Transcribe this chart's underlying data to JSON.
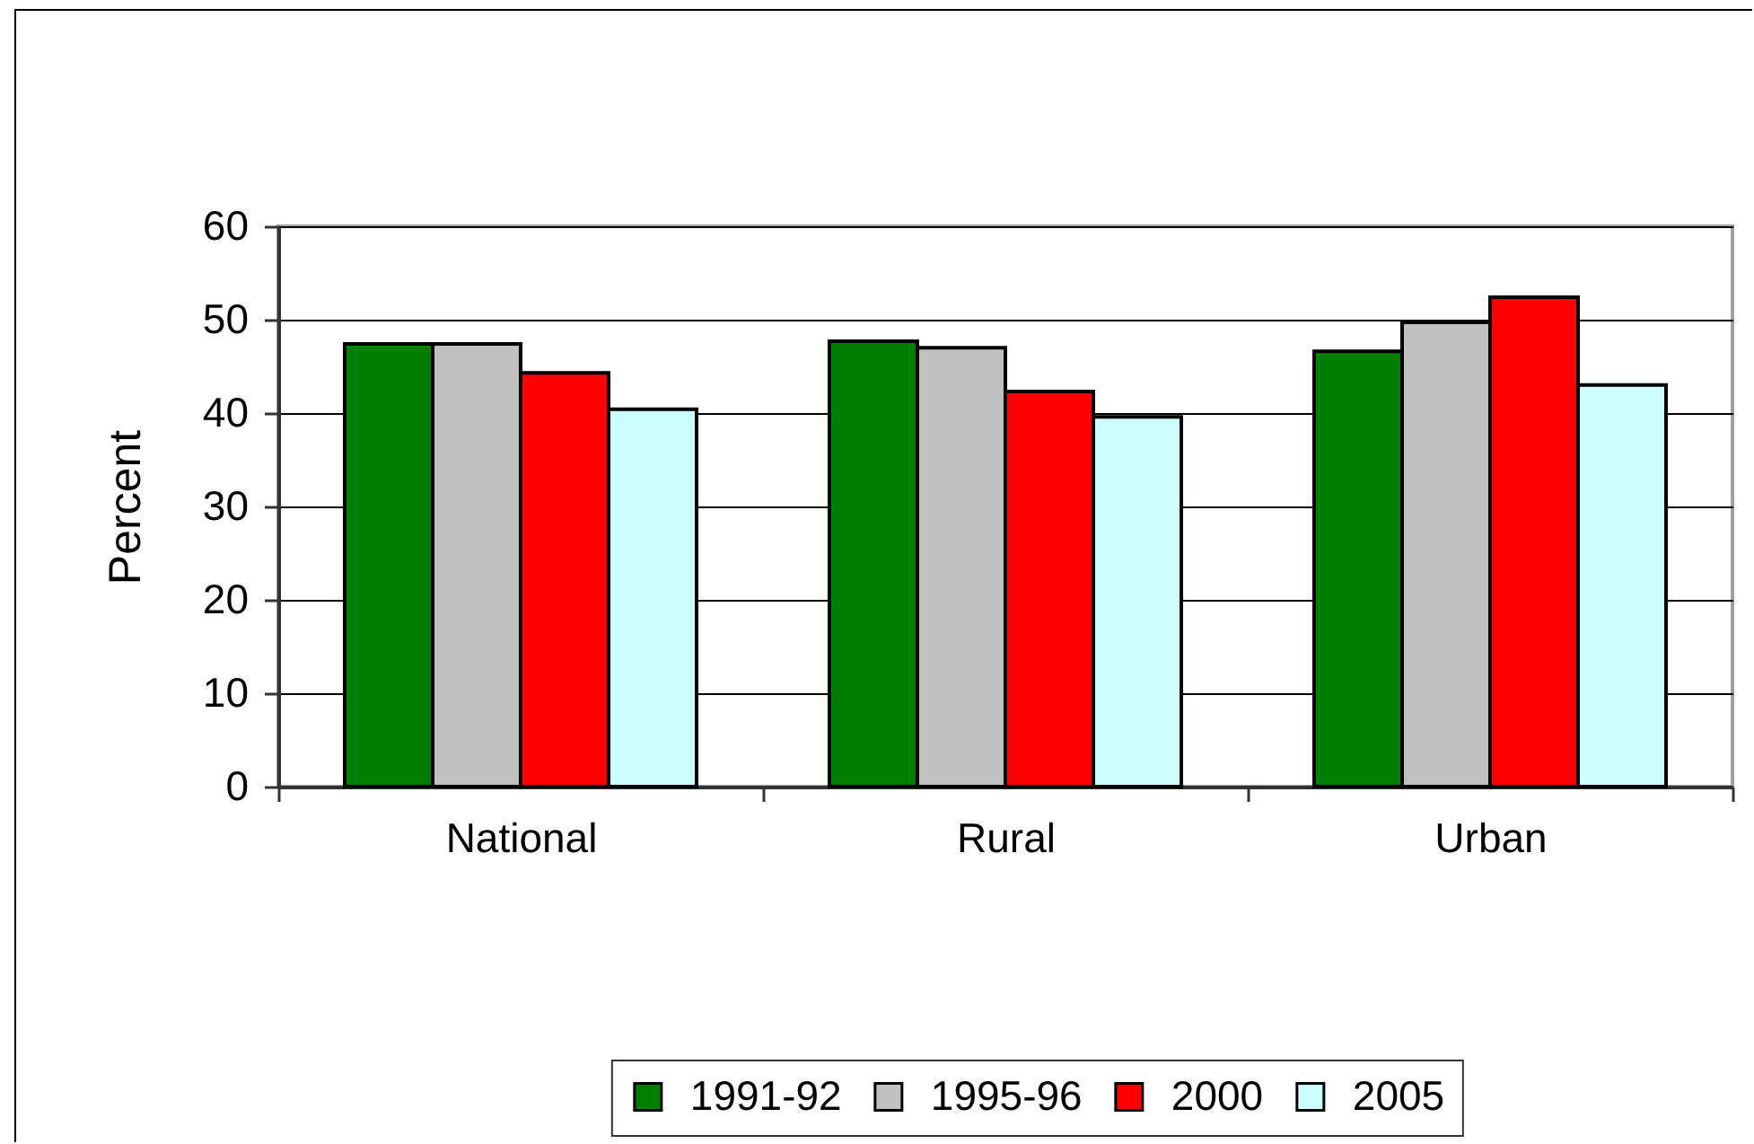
{
  "chart_data": {
    "type": "bar",
    "ylabel": "Percent",
    "categories": [
      "National",
      "Rural",
      "Urban"
    ],
    "series": [
      {
        "name": "1991-92",
        "color": "#008000",
        "values": [
          47.4,
          47.7,
          46.6
        ]
      },
      {
        "name": "1995-96",
        "color": "#c0c0c0",
        "values": [
          47.4,
          47.0,
          49.7
        ]
      },
      {
        "name": "2000",
        "color": "#ff0000",
        "values": [
          44.3,
          42.3,
          52.4
        ]
      },
      {
        "name": "2005",
        "color": "#ccffff",
        "values": [
          40.4,
          39.6,
          43.0
        ]
      }
    ],
    "ylim": [
      0,
      60
    ],
    "yticks": [
      0,
      10,
      20,
      30,
      40,
      50,
      60
    ],
    "grid": "y",
    "legend": "bottom"
  }
}
